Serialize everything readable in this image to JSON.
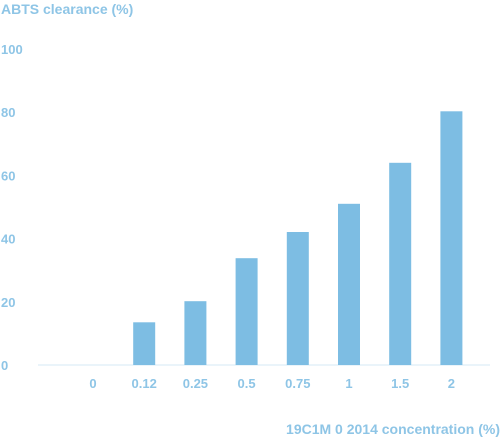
{
  "chart_data": {
    "type": "bar",
    "title": "ABTS clearance (%)",
    "xlabel": "19C1M 0 2014 concentration (%)",
    "ylabel": "ABTS clearance (%)",
    "categories": [
      "0",
      "0.12",
      "0.25",
      "0.5",
      "0.75",
      "1",
      "1.5",
      "2"
    ],
    "values": [
      0,
      13.5,
      20.2,
      33.8,
      42.1,
      51.0,
      64.0,
      80.3
    ],
    "y_ticks": [
      "0",
      "20",
      "40",
      "60",
      "80",
      "100"
    ],
    "ylim": [
      0,
      100
    ],
    "grid": false,
    "legend": "none",
    "colors": {
      "bar": "#7dbde3",
      "text": "#8ec5e6",
      "axis": "#d6e9f5"
    }
  }
}
